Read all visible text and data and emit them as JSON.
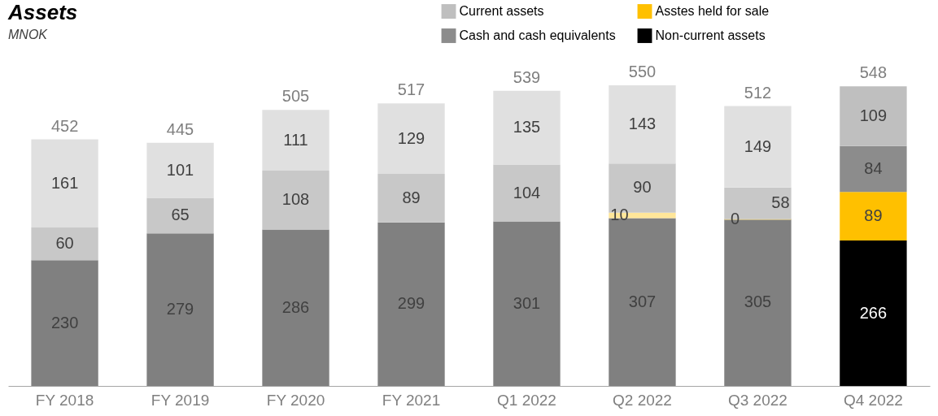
{
  "chart_data": {
    "type": "bar",
    "title": "Assets",
    "subtitle": "MNOK",
    "stacked": true,
    "data_labels": true,
    "grid": false,
    "legend": "top right",
    "categories": [
      "FY 2018",
      "FY 2019",
      "FY 2020",
      "FY 2021",
      "Q1 2022",
      "Q2 2022",
      "Q3 2022",
      "Q4 2022"
    ],
    "series": [
      {
        "name": "Non-current assets",
        "color": "#000000",
        "colors": [
          "#808080",
          "#808080",
          "#808080",
          "#808080",
          "#808080",
          "#808080",
          "#808080",
          "#000000"
        ],
        "values": [
          230,
          279,
          286,
          299,
          301,
          307,
          305,
          266
        ]
      },
      {
        "name": "Asstes held for sale",
        "color": "#ffc000",
        "colors": [
          null,
          null,
          null,
          null,
          null,
          "#ffe699",
          "#ffe699",
          "#ffc000"
        ],
        "values": [
          null,
          null,
          null,
          null,
          null,
          10,
          0,
          89
        ]
      },
      {
        "name": "Cash and cash equivalents",
        "color": "#8c8c8c",
        "colors": [
          "#c8c8c8",
          "#c8c8c8",
          "#c8c8c8",
          "#c8c8c8",
          "#c8c8c8",
          "#c8c8c8",
          "#c8c8c8",
          "#8c8c8c"
        ],
        "values": [
          60,
          65,
          108,
          89,
          104,
          90,
          58,
          84
        ]
      },
      {
        "name": "Current assets",
        "color": "#bfbfbf",
        "colors": [
          "#e0e0e0",
          "#e0e0e0",
          "#e0e0e0",
          "#e0e0e0",
          "#e0e0e0",
          "#e0e0e0",
          "#e0e0e0",
          "#bfbfbf"
        ],
        "values": [
          161,
          101,
          111,
          129,
          135,
          143,
          149,
          109
        ]
      }
    ],
    "totals": [
      "452",
      "445",
      "505",
      "517",
      "539",
      "550",
      "512",
      "548"
    ]
  }
}
